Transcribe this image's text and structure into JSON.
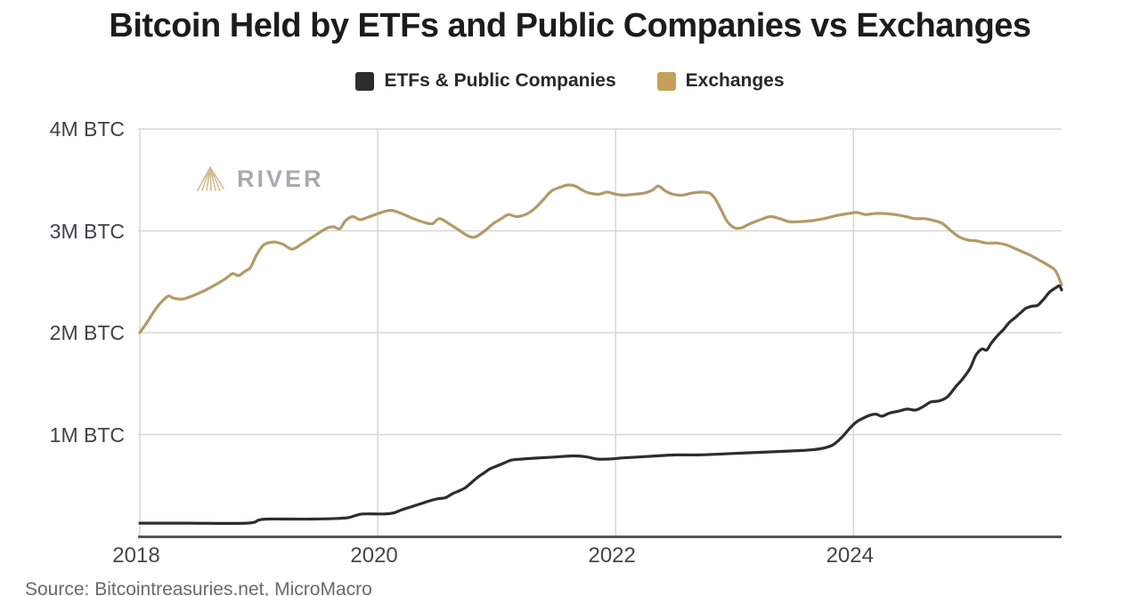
{
  "title": "Bitcoin Held by ETFs and Public Companies vs Exchanges",
  "source": "Source: Bitcointreasuries.net, MicroMacro",
  "watermark": {
    "text": "RIVER",
    "icon_color": "#c9b283",
    "text_color": "#9a9da0"
  },
  "legend": {
    "items": [
      {
        "label": "ETFs & Public Companies",
        "color": "#2d2d2d"
      },
      {
        "label": "Exchanges",
        "color": "#c4a05a"
      }
    ]
  },
  "colors": {
    "grid": "#d7d7d7",
    "axis": "#565656",
    "etfs_line": "#2d2d2d",
    "exchanges_line": "#b29a68",
    "background": "#ffffff"
  },
  "chart_data": {
    "type": "line",
    "title": "Bitcoin Held by ETFs and Public Companies vs Exchanges",
    "xlabel": "",
    "ylabel": "",
    "unit": "M BTC",
    "grid": true,
    "legend_position": "top",
    "x_range": [
      2018,
      2025.75
    ],
    "ylim": [
      0,
      4
    ],
    "x_ticks": [
      {
        "label": "2018",
        "year": 2018
      },
      {
        "label": "2020",
        "year": 2020
      },
      {
        "label": "2022",
        "year": 2022
      },
      {
        "label": "2024",
        "year": 2024
      }
    ],
    "y_ticks": [
      {
        "label": "4M BTC",
        "value": 4
      },
      {
        "label": "3M BTC",
        "value": 3
      },
      {
        "label": "2M BTC",
        "value": 2
      },
      {
        "label": "1M BTC",
        "value": 1
      }
    ],
    "series": [
      {
        "name": "Exchanges",
        "color": "#b29a68",
        "points": [
          [
            2018.0,
            2.0
          ],
          [
            2018.06,
            2.1
          ],
          [
            2018.12,
            2.21
          ],
          [
            2018.18,
            2.3
          ],
          [
            2018.24,
            2.36
          ],
          [
            2018.28,
            2.34
          ],
          [
            2018.36,
            2.33
          ],
          [
            2018.44,
            2.36
          ],
          [
            2018.52,
            2.4
          ],
          [
            2018.62,
            2.46
          ],
          [
            2018.72,
            2.53
          ],
          [
            2018.78,
            2.58
          ],
          [
            2018.83,
            2.56
          ],
          [
            2018.88,
            2.6
          ],
          [
            2018.93,
            2.64
          ],
          [
            2018.98,
            2.76
          ],
          [
            2019.04,
            2.86
          ],
          [
            2019.12,
            2.89
          ],
          [
            2019.2,
            2.87
          ],
          [
            2019.28,
            2.82
          ],
          [
            2019.36,
            2.87
          ],
          [
            2019.44,
            2.93
          ],
          [
            2019.52,
            2.99
          ],
          [
            2019.58,
            3.03
          ],
          [
            2019.63,
            3.04
          ],
          [
            2019.68,
            3.02
          ],
          [
            2019.73,
            3.1
          ],
          [
            2019.79,
            3.14
          ],
          [
            2019.85,
            3.11
          ],
          [
            2019.91,
            3.13
          ],
          [
            2019.98,
            3.16
          ],
          [
            2020.06,
            3.19
          ],
          [
            2020.12,
            3.2
          ],
          [
            2020.2,
            3.17
          ],
          [
            2020.3,
            3.12
          ],
          [
            2020.4,
            3.08
          ],
          [
            2020.46,
            3.07
          ],
          [
            2020.52,
            3.12
          ],
          [
            2020.6,
            3.07
          ],
          [
            2020.68,
            3.01
          ],
          [
            2020.76,
            2.95
          ],
          [
            2020.82,
            2.94
          ],
          [
            2020.9,
            3.0
          ],
          [
            2020.97,
            3.07
          ],
          [
            2021.04,
            3.12
          ],
          [
            2021.1,
            3.16
          ],
          [
            2021.16,
            3.14
          ],
          [
            2021.22,
            3.15
          ],
          [
            2021.3,
            3.2
          ],
          [
            2021.38,
            3.29
          ],
          [
            2021.46,
            3.39
          ],
          [
            2021.54,
            3.43
          ],
          [
            2021.6,
            3.45
          ],
          [
            2021.66,
            3.44
          ],
          [
            2021.72,
            3.4
          ],
          [
            2021.78,
            3.37
          ],
          [
            2021.86,
            3.36
          ],
          [
            2021.93,
            3.38
          ],
          [
            2022.0,
            3.36
          ],
          [
            2022.08,
            3.35
          ],
          [
            2022.16,
            3.36
          ],
          [
            2022.24,
            3.37
          ],
          [
            2022.31,
            3.4
          ],
          [
            2022.36,
            3.44
          ],
          [
            2022.42,
            3.39
          ],
          [
            2022.48,
            3.36
          ],
          [
            2022.56,
            3.35
          ],
          [
            2022.64,
            3.37
          ],
          [
            2022.72,
            3.38
          ],
          [
            2022.79,
            3.37
          ],
          [
            2022.84,
            3.31
          ],
          [
            2022.89,
            3.2
          ],
          [
            2022.94,
            3.09
          ],
          [
            2023.0,
            3.03
          ],
          [
            2023.06,
            3.03
          ],
          [
            2023.13,
            3.07
          ],
          [
            2023.22,
            3.11
          ],
          [
            2023.3,
            3.14
          ],
          [
            2023.38,
            3.12
          ],
          [
            2023.46,
            3.09
          ],
          [
            2023.55,
            3.09
          ],
          [
            2023.65,
            3.1
          ],
          [
            2023.75,
            3.12
          ],
          [
            2023.86,
            3.15
          ],
          [
            2023.96,
            3.17
          ],
          [
            2024.03,
            3.18
          ],
          [
            2024.1,
            3.16
          ],
          [
            2024.18,
            3.17
          ],
          [
            2024.26,
            3.17
          ],
          [
            2024.35,
            3.16
          ],
          [
            2024.44,
            3.14
          ],
          [
            2024.52,
            3.12
          ],
          [
            2024.6,
            3.12
          ],
          [
            2024.68,
            3.1
          ],
          [
            2024.75,
            3.07
          ],
          [
            2024.82,
            3.0
          ],
          [
            2024.89,
            2.94
          ],
          [
            2024.96,
            2.91
          ],
          [
            2025.04,
            2.9
          ],
          [
            2025.12,
            2.88
          ],
          [
            2025.21,
            2.88
          ],
          [
            2025.29,
            2.86
          ],
          [
            2025.37,
            2.82
          ],
          [
            2025.45,
            2.78
          ],
          [
            2025.52,
            2.74
          ],
          [
            2025.58,
            2.7
          ],
          [
            2025.64,
            2.66
          ],
          [
            2025.69,
            2.62
          ],
          [
            2025.72,
            2.56
          ],
          [
            2025.75,
            2.47
          ]
        ]
      },
      {
        "name": "ETFs & Public Companies",
        "color": "#2d2d2d",
        "points": [
          [
            2018.0,
            0.13
          ],
          [
            2018.4,
            0.13
          ],
          [
            2018.9,
            0.13
          ],
          [
            2019.0,
            0.16
          ],
          [
            2019.08,
            0.17
          ],
          [
            2019.45,
            0.17
          ],
          [
            2019.72,
            0.18
          ],
          [
            2019.8,
            0.2
          ],
          [
            2019.87,
            0.22
          ],
          [
            2020.05,
            0.22
          ],
          [
            2020.13,
            0.23
          ],
          [
            2020.2,
            0.26
          ],
          [
            2020.28,
            0.29
          ],
          [
            2020.36,
            0.32
          ],
          [
            2020.44,
            0.35
          ],
          [
            2020.51,
            0.37
          ],
          [
            2020.57,
            0.38
          ],
          [
            2020.63,
            0.42
          ],
          [
            2020.69,
            0.45
          ],
          [
            2020.74,
            0.48
          ],
          [
            2020.79,
            0.53
          ],
          [
            2020.84,
            0.58
          ],
          [
            2020.89,
            0.62
          ],
          [
            2020.94,
            0.66
          ],
          [
            2021.0,
            0.69
          ],
          [
            2021.06,
            0.72
          ],
          [
            2021.13,
            0.75
          ],
          [
            2021.22,
            0.76
          ],
          [
            2021.35,
            0.77
          ],
          [
            2021.5,
            0.78
          ],
          [
            2021.65,
            0.79
          ],
          [
            2021.76,
            0.78
          ],
          [
            2021.84,
            0.76
          ],
          [
            2021.95,
            0.76
          ],
          [
            2022.05,
            0.77
          ],
          [
            2022.2,
            0.78
          ],
          [
            2022.35,
            0.79
          ],
          [
            2022.5,
            0.8
          ],
          [
            2022.7,
            0.8
          ],
          [
            2022.9,
            0.81
          ],
          [
            2023.1,
            0.82
          ],
          [
            2023.3,
            0.83
          ],
          [
            2023.5,
            0.84
          ],
          [
            2023.65,
            0.85
          ],
          [
            2023.76,
            0.87
          ],
          [
            2023.83,
            0.9
          ],
          [
            2023.9,
            0.97
          ],
          [
            2023.96,
            1.05
          ],
          [
            2024.02,
            1.12
          ],
          [
            2024.08,
            1.16
          ],
          [
            2024.14,
            1.19
          ],
          [
            2024.19,
            1.2
          ],
          [
            2024.24,
            1.18
          ],
          [
            2024.3,
            1.21
          ],
          [
            2024.38,
            1.23
          ],
          [
            2024.45,
            1.25
          ],
          [
            2024.52,
            1.24
          ],
          [
            2024.58,
            1.27
          ],
          [
            2024.65,
            1.32
          ],
          [
            2024.72,
            1.33
          ],
          [
            2024.79,
            1.37
          ],
          [
            2024.86,
            1.47
          ],
          [
            2024.92,
            1.55
          ],
          [
            2024.98,
            1.65
          ],
          [
            2025.03,
            1.78
          ],
          [
            2025.08,
            1.84
          ],
          [
            2025.12,
            1.83
          ],
          [
            2025.16,
            1.9
          ],
          [
            2025.21,
            1.97
          ],
          [
            2025.26,
            2.03
          ],
          [
            2025.31,
            2.1
          ],
          [
            2025.35,
            2.14
          ],
          [
            2025.4,
            2.19
          ],
          [
            2025.45,
            2.24
          ],
          [
            2025.5,
            2.26
          ],
          [
            2025.55,
            2.27
          ],
          [
            2025.6,
            2.33
          ],
          [
            2025.65,
            2.4
          ],
          [
            2025.7,
            2.44
          ],
          [
            2025.73,
            2.46
          ],
          [
            2025.75,
            2.42
          ]
        ]
      }
    ]
  }
}
